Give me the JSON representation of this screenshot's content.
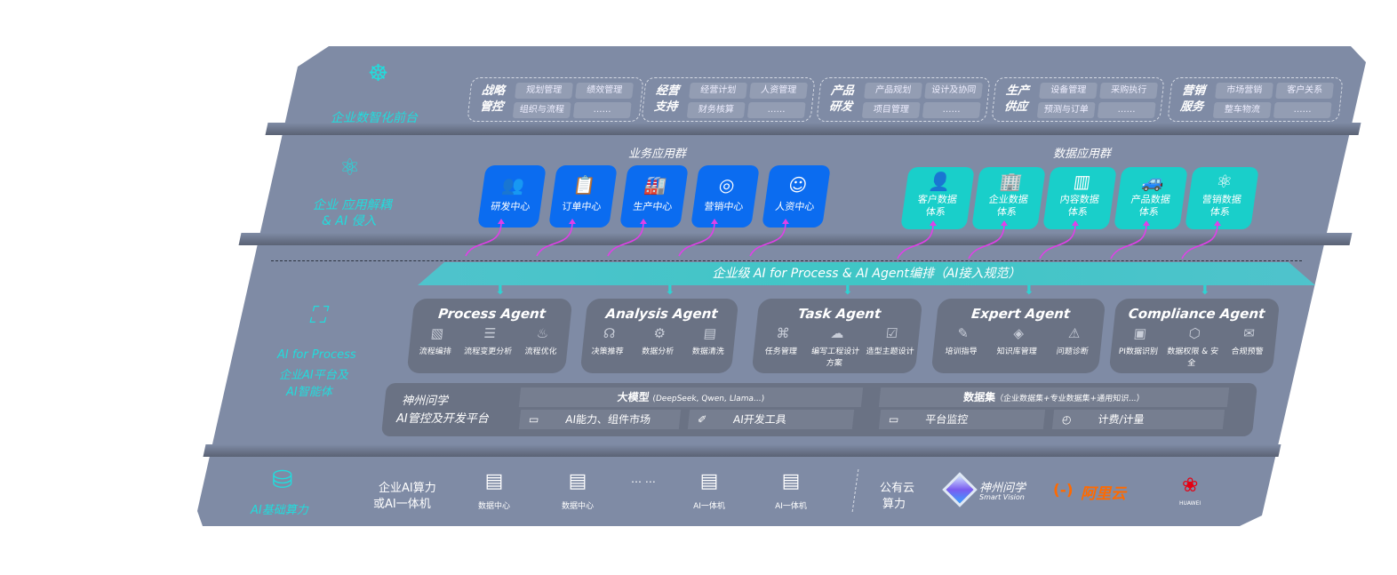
{
  "layer1": {
    "label": "企业数智化前台",
    "icon": "brain-head-icon",
    "groups": [
      {
        "title": "战略管控",
        "items": [
          "规划管理",
          "绩效管理",
          "组织与流程",
          "……"
        ]
      },
      {
        "title": "经营支持",
        "items": [
          "经营计划",
          "人资管理",
          "财务核算",
          "……"
        ]
      },
      {
        "title": "产品研发",
        "items": [
          "产品规划",
          "设计及协同",
          "项目管理",
          "……"
        ]
      },
      {
        "title": "生产供应",
        "items": [
          "设备管理",
          "采购执行",
          "预测与订单",
          "……"
        ]
      },
      {
        "title": "营销服务",
        "items": [
          "市场营销",
          "客户关系",
          "整车物流",
          "……"
        ]
      }
    ]
  },
  "layer2": {
    "label": "企业 应用解耦",
    "label2": "& AI 侵入",
    "icon": "molecule-node-icon",
    "business_title": "业务应用群",
    "business": [
      {
        "label": "研发中心",
        "icon": "users-icon"
      },
      {
        "label": "订单中心",
        "icon": "clipboard-icon"
      },
      {
        "label": "生产中心",
        "icon": "factory-icon"
      },
      {
        "label": "营销中心",
        "icon": "target-icon"
      },
      {
        "label": "人资中心",
        "icon": "person-icon"
      }
    ],
    "data_title": "数据应用群",
    "data": [
      {
        "l1": "客户数据",
        "l2": "体系",
        "icon": "user-icon"
      },
      {
        "l1": "企业数据",
        "l2": "体系",
        "icon": "building-icon"
      },
      {
        "l1": "内容数据",
        "l2": "体系",
        "icon": "books-icon"
      },
      {
        "l1": "产品数据",
        "l2": "体系",
        "icon": "car-icon"
      },
      {
        "l1": "营销数据",
        "l2": "体系",
        "icon": "atom-icon"
      }
    ]
  },
  "banner": "企业级 AI for Process & AI Agent编排（AI接入规范）",
  "layer3": {
    "label": "AI for Process",
    "label2": "企业AI平台及",
    "label3": "AI智能体",
    "icon": "face-scan-icon",
    "agents": [
      {
        "name": "Process Agent",
        "items": [
          {
            "t": "流程编排",
            "icon": "chart-window-icon"
          },
          {
            "t": "流程变更分析",
            "icon": "list-icon"
          },
          {
            "t": "流程优化",
            "icon": "sliders-icon"
          }
        ]
      },
      {
        "name": "Analysis Agent",
        "items": [
          {
            "t": "决策推荐",
            "icon": "head-icon"
          },
          {
            "t": "数据分析",
            "icon": "gear-atom-icon"
          },
          {
            "t": "数据清洗",
            "icon": "doc-clean-icon"
          }
        ]
      },
      {
        "name": "Task Agent",
        "items": [
          {
            "t": "任务管理",
            "icon": "network-icon"
          },
          {
            "t": "编写工程设计方案",
            "icon": "cloud-icon"
          },
          {
            "t": "造型主题设计",
            "icon": "checklist-clock-icon"
          }
        ]
      },
      {
        "name": "Expert Agent",
        "items": [
          {
            "t": "培训指导",
            "icon": "pencil-ruler-icon"
          },
          {
            "t": "知识库管理",
            "icon": "layers-icon"
          },
          {
            "t": "问题诊断",
            "icon": "diagnose-icon"
          }
        ]
      },
      {
        "name": "Compliance Agent",
        "items": [
          {
            "t": "PI数据识别",
            "icon": "id-card-icon"
          },
          {
            "t": "数据权限 & 安全",
            "icon": "shield-icon"
          },
          {
            "t": "合规预警",
            "icon": "alert-mail-icon"
          }
        ]
      }
    ],
    "platform": {
      "title1": "神州问学",
      "title2": "AI管控及开发平台",
      "model": "大模型",
      "model_note": "(DeepSeek, Qwen, Llama...)",
      "dataset": "数据集",
      "dataset_note": "（企业数据集+专业数据集+通用知识...）",
      "tools": [
        {
          "t": "AI能力、组件市场",
          "icon": "market-icon"
        },
        {
          "t": "AI开发工具",
          "icon": "dev-tool-icon"
        },
        {
          "t": "平台监控",
          "icon": "monitor-icon"
        },
        {
          "t": "计费/计量",
          "icon": "gauge-icon"
        }
      ]
    }
  },
  "layer4": {
    "label": "AI基础算力",
    "icon": "database-icon",
    "compute_title1": "企业AI算力",
    "compute_title2": "或AI一体机",
    "servers": [
      "数据中心",
      "数据中心",
      "AI一体机",
      "AI一体机"
    ],
    "ellipsis": "… …",
    "cloud_title1": "公有云",
    "cloud_title2": "算力",
    "vendors": {
      "shenzhou": "神州问学",
      "shenzhou_en": "Smart Vision",
      "aliyun": "阿里云",
      "huawei": "HUAWEI"
    }
  },
  "colors": {
    "panel": "#7f8ba5",
    "blue_tile": "#0b6cf0",
    "teal_tile": "#19cfca",
    "accent_cyan": "#22dcdc",
    "arrow": "#e040e8",
    "aliyun": "#ff6a00",
    "huawei": "#e60012"
  }
}
